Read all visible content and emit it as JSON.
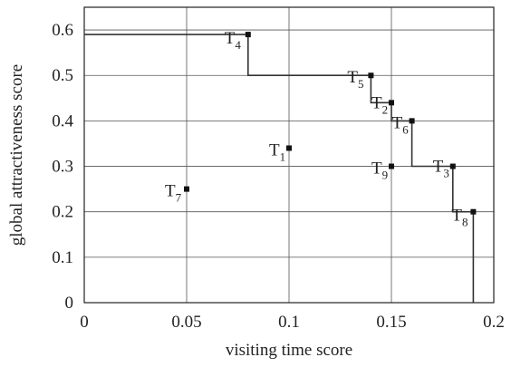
{
  "chart_data": {
    "type": "scatter",
    "title": "",
    "xlabel": "visiting time score",
    "ylabel": "global attractiveness score",
    "xlim": [
      0,
      0.2
    ],
    "ylim": [
      0,
      0.65
    ],
    "grid": true,
    "x_ticks": [
      0,
      0.05,
      0.1,
      0.15,
      0.2
    ],
    "x_tick_labels": [
      "0",
      "0.05",
      "0.1",
      "0.15",
      "0.2"
    ],
    "y_ticks": [
      0,
      0.1,
      0.2,
      0.3,
      0.4,
      0.5,
      0.6
    ],
    "y_tick_labels": [
      "0",
      "0.1",
      "0.2",
      "0.3",
      "0.4",
      "0.5",
      "0.6"
    ],
    "points": [
      {
        "label": "T",
        "sub": "1",
        "x": 0.1,
        "y": 0.34
      },
      {
        "label": "T",
        "sub": "2",
        "x": 0.15,
        "y": 0.44
      },
      {
        "label": "T",
        "sub": "3",
        "x": 0.18,
        "y": 0.3
      },
      {
        "label": "T",
        "sub": "4",
        "x": 0.08,
        "y": 0.59
      },
      {
        "label": "T",
        "sub": "5",
        "x": 0.14,
        "y": 0.5
      },
      {
        "label": "T",
        "sub": "6",
        "x": 0.16,
        "y": 0.4
      },
      {
        "label": "T",
        "sub": "7",
        "x": 0.05,
        "y": 0.25
      },
      {
        "label": "T",
        "sub": "8",
        "x": 0.19,
        "y": 0.2
      },
      {
        "label": "T",
        "sub": "9",
        "x": 0.15,
        "y": 0.3
      }
    ],
    "pareto_front": [
      [
        0,
        0.59
      ],
      [
        0.08,
        0.59
      ],
      [
        0.08,
        0.5
      ],
      [
        0.14,
        0.5
      ],
      [
        0.14,
        0.44
      ],
      [
        0.15,
        0.44
      ],
      [
        0.15,
        0.4
      ],
      [
        0.16,
        0.4
      ],
      [
        0.16,
        0.3
      ],
      [
        0.18,
        0.3
      ],
      [
        0.18,
        0.2
      ],
      [
        0.19,
        0.2
      ],
      [
        0.19,
        0
      ]
    ]
  }
}
